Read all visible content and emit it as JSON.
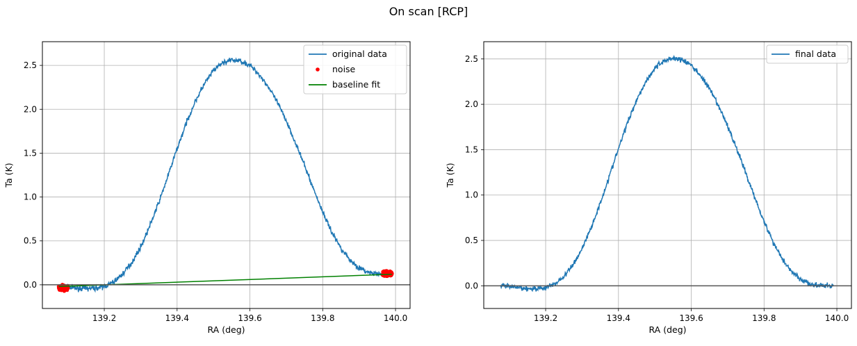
{
  "figure": {
    "title": "On scan [RCP]"
  },
  "colors": {
    "data": "#1f77b4",
    "noise": "#ff0000",
    "fit": "#008000",
    "zero_line": "#555555"
  },
  "chart_data": [
    {
      "type": "line",
      "xlabel": "RA (deg)",
      "ylabel": "Ta (K)",
      "xlim": [
        139.03,
        140.04
      ],
      "ylim": [
        -0.27,
        2.77
      ],
      "xticks": [
        139.2,
        139.4,
        139.6,
        139.8,
        140.0
      ],
      "xtick_labels": [
        "139.2",
        "139.4",
        "139.6",
        "139.8",
        "140.0"
      ],
      "yticks": [
        0.0,
        0.5,
        1.0,
        1.5,
        2.0,
        2.5
      ],
      "ytick_labels": [
        "0.0",
        "0.5",
        "1.0",
        "1.5",
        "2.0",
        "2.5"
      ],
      "grid": true,
      "legend_position": "top-right",
      "hline_y": 0,
      "series": [
        {
          "name": "original data",
          "kind": "line",
          "color": "#1f77b4",
          "x": [
            139.075,
            139.1,
            139.125,
            139.15,
            139.175,
            139.2,
            139.225,
            139.25,
            139.275,
            139.3,
            139.325,
            139.35,
            139.375,
            139.4,
            139.425,
            139.45,
            139.475,
            139.5,
            139.525,
            139.55,
            139.575,
            139.6,
            139.625,
            139.65,
            139.675,
            139.7,
            139.725,
            139.75,
            139.775,
            139.8,
            139.825,
            139.85,
            139.875,
            139.9,
            139.925,
            139.95,
            139.975,
            139.99
          ],
          "y": [
            -0.02,
            -0.03,
            -0.04,
            -0.04,
            -0.04,
            -0.02,
            0.03,
            0.12,
            0.25,
            0.43,
            0.67,
            0.94,
            1.24,
            1.55,
            1.84,
            2.09,
            2.29,
            2.44,
            2.53,
            2.56,
            2.55,
            2.5,
            2.4,
            2.26,
            2.08,
            1.87,
            1.62,
            1.36,
            1.09,
            0.83,
            0.6,
            0.42,
            0.28,
            0.19,
            0.14,
            0.12,
            0.12,
            0.12
          ]
        },
        {
          "name": "noise",
          "kind": "points",
          "color": "#ff0000",
          "x": [
            139.075,
            139.08,
            139.085,
            139.09,
            139.095,
            139.1,
            139.965,
            139.97,
            139.975,
            139.98,
            139.985,
            139.99
          ],
          "y": [
            -0.02,
            -0.05,
            0.0,
            -0.07,
            -0.03,
            -0.04,
            0.11,
            0.15,
            0.1,
            0.14,
            0.12,
            0.13
          ]
        },
        {
          "name": "baseline fit",
          "kind": "line",
          "color": "#008000",
          "x": [
            139.075,
            139.99
          ],
          "y": [
            -0.02,
            0.12
          ]
        }
      ]
    },
    {
      "type": "line",
      "xlabel": "RA (deg)",
      "ylabel": "Ta (K)",
      "xlim": [
        139.03,
        140.04
      ],
      "ylim": [
        -0.25,
        2.69
      ],
      "xticks": [
        139.2,
        139.4,
        139.6,
        139.8,
        140.0
      ],
      "xtick_labels": [
        "139.2",
        "139.4",
        "139.6",
        "139.8",
        "140.0"
      ],
      "yticks": [
        0.0,
        0.5,
        1.0,
        1.5,
        2.0,
        2.5
      ],
      "ytick_labels": [
        "0.0",
        "0.5",
        "1.0",
        "1.5",
        "2.0",
        "2.5"
      ],
      "grid": true,
      "legend_position": "top-right",
      "hline_y": 0,
      "series": [
        {
          "name": "final data",
          "kind": "line",
          "color": "#1f77b4",
          "x": [
            139.075,
            139.1,
            139.125,
            139.15,
            139.175,
            139.2,
            139.225,
            139.25,
            139.275,
            139.3,
            139.325,
            139.35,
            139.375,
            139.4,
            139.425,
            139.45,
            139.475,
            139.5,
            139.525,
            139.55,
            139.575,
            139.6,
            139.625,
            139.65,
            139.675,
            139.7,
            139.725,
            139.75,
            139.775,
            139.8,
            139.825,
            139.85,
            139.875,
            139.9,
            139.925,
            139.95,
            139.975,
            139.99
          ],
          "y": [
            0.0,
            -0.01,
            -0.02,
            -0.03,
            -0.03,
            -0.02,
            0.02,
            0.1,
            0.23,
            0.41,
            0.64,
            0.91,
            1.21,
            1.51,
            1.8,
            2.05,
            2.25,
            2.4,
            2.48,
            2.51,
            2.49,
            2.43,
            2.32,
            2.17,
            1.98,
            1.76,
            1.51,
            1.24,
            0.97,
            0.71,
            0.48,
            0.3,
            0.16,
            0.07,
            0.02,
            0.0,
            0.0,
            0.0
          ]
        }
      ]
    }
  ]
}
